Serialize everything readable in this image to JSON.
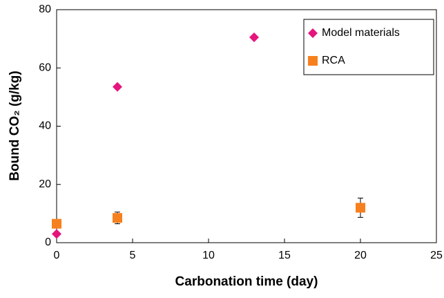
{
  "chart_data": {
    "type": "scatter",
    "xlabel": "Carbonation time (day)",
    "ylabel": "Bound CO₂ (g/kg)",
    "xlim": [
      0,
      25
    ],
    "xticks": [
      0,
      5,
      10,
      15,
      20,
      25
    ],
    "ylim": [
      0,
      80
    ],
    "yticks": [
      0,
      20,
      40,
      60,
      80
    ],
    "legend": "upper right",
    "series": [
      {
        "name": "Model materials",
        "color": "#e5157d",
        "marker": "diamond",
        "x": [
          0,
          4,
          13
        ],
        "values": [
          3,
          53.5,
          70.5
        ]
      },
      {
        "name": "RCA",
        "color": "#f7801e",
        "marker": "square",
        "x": [
          0,
          4,
          20
        ],
        "values": [
          6.5,
          8.5,
          12
        ],
        "errors": [
          null,
          2,
          3.3
        ]
      }
    ]
  }
}
